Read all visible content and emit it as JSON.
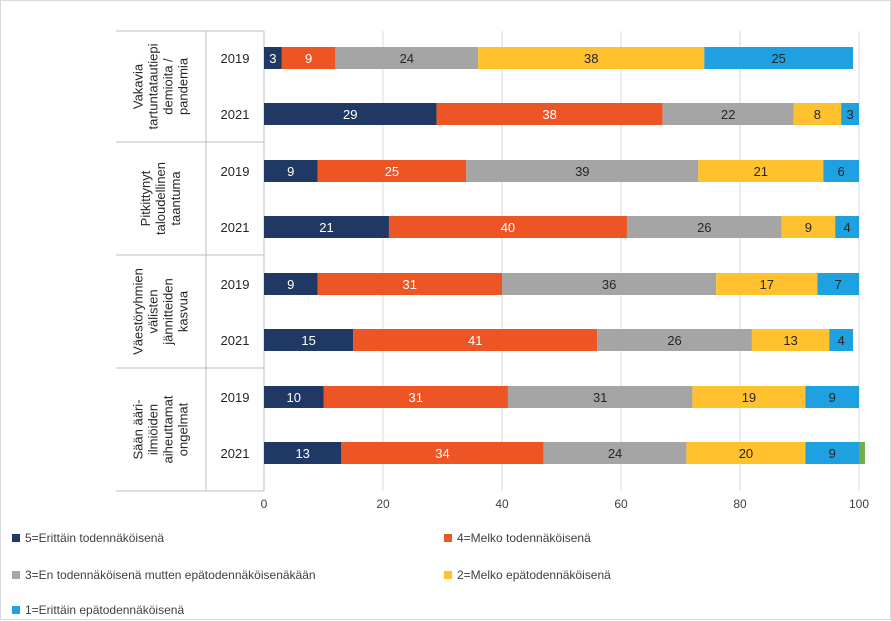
{
  "chart_data": {
    "type": "bar",
    "orientation": "horizontal",
    "stacked": true,
    "groups": [
      {
        "label": "Vakavia tartuntatautiepi­demioita / pandemia",
        "label_lines": [
          "Vakavia",
          "tartuntatautiepi",
          "demioita /",
          "pandemia"
        ]
      },
      {
        "label": "Pitkittynyt taloudellinen taantuma",
        "label_lines": [
          "Pitkittynyt",
          "taloudellinen",
          "taantuma"
        ]
      },
      {
        "label": "Väestöryhmien välisten jännitteiden kasvua",
        "label_lines": [
          "Väestöryhmien",
          "välisten",
          "jännitteiden",
          "kasvua"
        ]
      },
      {
        "label": "Sään ääri-ilmiöiden aiheuttamat ongelmat",
        "label_lines": [
          "Sään ääri-",
          "ilmiöiden",
          "aiheuttamat",
          "ongelmat"
        ]
      }
    ],
    "years": [
      "2019",
      "2021"
    ],
    "series": [
      {
        "name": "5=Erittäin todennäköisenä",
        "color": "#203864"
      },
      {
        "name": "4=Melko todennäköisenä",
        "color": "#ed5525"
      },
      {
        "name": "3=En todennäköisenä mutten epätodennäköisenäkään",
        "color": "#a5a5a5"
      },
      {
        "name": "2=Melko epätodennäköisenä",
        "color": "#ffc22e"
      },
      {
        "name": "1=Erittäin epätodennäköisenä",
        "color": "#1fa0e0"
      },
      {
        "color": "#70ad47"
      }
    ],
    "rows": [
      {
        "group": 0,
        "year": "2019",
        "values": [
          3,
          9,
          24,
          38,
          25,
          0
        ],
        "labels": [
          "3",
          "9",
          "24",
          "38",
          "25",
          ""
        ]
      },
      {
        "group": 0,
        "year": "2021",
        "values": [
          29,
          38,
          22,
          8,
          3,
          0
        ],
        "labels": [
          "29",
          "38",
          "22",
          "8",
          "3",
          ""
        ]
      },
      {
        "group": 1,
        "year": "2019",
        "values": [
          9,
          25,
          39,
          21,
          6,
          0
        ],
        "labels": [
          "9",
          "25",
          "39",
          "21",
          "6",
          ""
        ]
      },
      {
        "group": 1,
        "year": "2021",
        "values": [
          21,
          40,
          26,
          9,
          4,
          0
        ],
        "labels": [
          "21",
          "40",
          "26",
          "9",
          "4",
          ""
        ]
      },
      {
        "group": 2,
        "year": "2019",
        "values": [
          9,
          31,
          36,
          17,
          7,
          0
        ],
        "labels": [
          "9",
          "31",
          "36",
          "17",
          "7",
          ""
        ]
      },
      {
        "group": 2,
        "year": "2021",
        "values": [
          15,
          41,
          26,
          13,
          4,
          0
        ],
        "labels": [
          "15",
          "41",
          "26",
          "13",
          "4",
          ""
        ]
      },
      {
        "group": 3,
        "year": "2019",
        "values": [
          10,
          31,
          31,
          19,
          9,
          0
        ],
        "labels": [
          "10",
          "31",
          "31",
          "19",
          "9",
          ""
        ]
      },
      {
        "group": 3,
        "year": "2021",
        "values": [
          13,
          34,
          24,
          20,
          9,
          1
        ],
        "labels": [
          "13",
          "34",
          "24",
          "20",
          "9",
          ""
        ]
      }
    ],
    "xlim": [
      0,
      100
    ],
    "xticks": [
      0,
      20,
      40,
      60,
      80,
      100
    ],
    "grid": true,
    "legend_position": "bottom"
  }
}
